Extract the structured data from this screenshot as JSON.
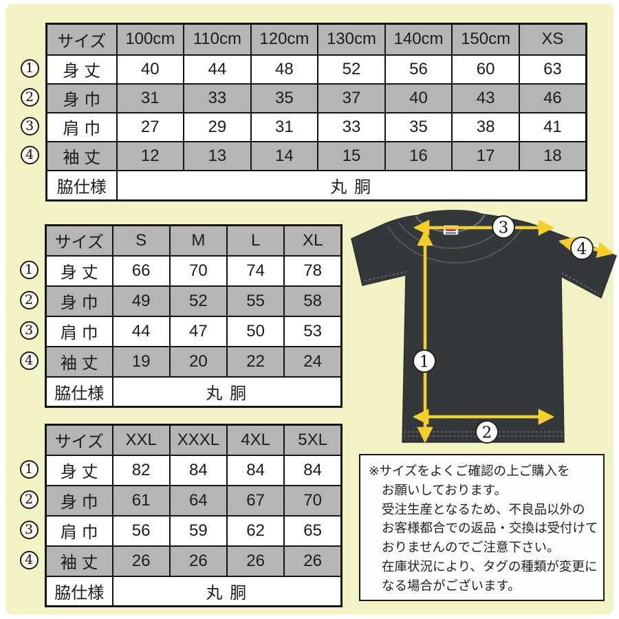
{
  "markers": [
    "1",
    "2",
    "3",
    "4"
  ],
  "tables": [
    {
      "name": "size-table-kids-xs",
      "header": [
        "サイズ",
        "100cm",
        "110cm",
        "120cm",
        "130cm",
        "140cm",
        "150cm",
        "XS"
      ],
      "rows": [
        {
          "marker": "1",
          "label": "身 丈",
          "values": [
            "40",
            "44",
            "48",
            "52",
            "56",
            "60",
            "63"
          ]
        },
        {
          "marker": "2",
          "label": "身 巾",
          "values": [
            "31",
            "33",
            "35",
            "37",
            "40",
            "43",
            "46"
          ]
        },
        {
          "marker": "3",
          "label": "肩 巾",
          "values": [
            "27",
            "29",
            "31",
            "33",
            "35",
            "38",
            "41"
          ]
        },
        {
          "marker": "4",
          "label": "袖 丈",
          "values": [
            "12",
            "13",
            "14",
            "15",
            "16",
            "17",
            "18"
          ]
        }
      ],
      "footer": {
        "label": "脇仕様",
        "value": "丸 胴"
      }
    },
    {
      "name": "size-table-s-xl",
      "header": [
        "サイズ",
        "S",
        "M",
        "L",
        "XL"
      ],
      "rows": [
        {
          "marker": "1",
          "label": "身 丈",
          "values": [
            "66",
            "70",
            "74",
            "78"
          ]
        },
        {
          "marker": "2",
          "label": "身 巾",
          "values": [
            "49",
            "52",
            "55",
            "58"
          ]
        },
        {
          "marker": "3",
          "label": "肩 巾",
          "values": [
            "44",
            "47",
            "50",
            "53"
          ]
        },
        {
          "marker": "4",
          "label": "袖 丈",
          "values": [
            "19",
            "20",
            "22",
            "24"
          ]
        }
      ],
      "footer": {
        "label": "脇仕様",
        "value": "丸 胴"
      }
    },
    {
      "name": "size-table-xxl-5xl",
      "header": [
        "サイズ",
        "XXL",
        "XXXL",
        "4XL",
        "5XL"
      ],
      "rows": [
        {
          "marker": "1",
          "label": "身 丈",
          "values": [
            "82",
            "84",
            "84",
            "84"
          ]
        },
        {
          "marker": "2",
          "label": "身 巾",
          "values": [
            "61",
            "64",
            "67",
            "70"
          ]
        },
        {
          "marker": "3",
          "label": "肩 巾",
          "values": [
            "56",
            "59",
            "62",
            "65"
          ]
        },
        {
          "marker": "4",
          "label": "袖 丈",
          "values": [
            "26",
            "26",
            "26",
            "26"
          ]
        }
      ],
      "footer": {
        "label": "脇仕様",
        "value": "丸 胴"
      }
    }
  ],
  "diagram": {
    "description": "tshirt-measurement-diagram",
    "shirt_color": "#34383b",
    "arrow_color": "#f4cf27",
    "tag_icon": "brand-tag-icon"
  },
  "notice": {
    "lines": [
      "※サイズをよくご確認の上ご購入を",
      "お願いしております。",
      "受注生産となるため、不良品以外の",
      "お客様都合での返品・交換は受付けて",
      "おりませんのでご注意下さい。",
      "在庫状況により、タグの種類が変更に",
      "なる場合がございます。"
    ]
  },
  "colors": {
    "background": "#f2f2c4",
    "cell_shaded": "#b5b5b5",
    "cell_plain": "#ffffff",
    "table_border": "#141414",
    "arrow_yellow": "#f4cf27",
    "shirt_dark": "#34383b"
  }
}
